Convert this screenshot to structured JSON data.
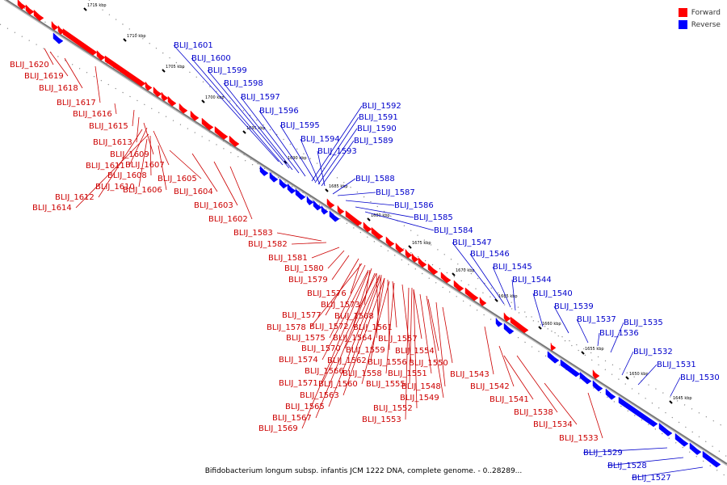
{
  "caption": "Bifidobacterium longum subsp. infantis JCM 1222 DNA, complete genome. - 0..28289...",
  "legend": {
    "forward": {
      "label": "Forward",
      "color": "#ff0000"
    },
    "reverse": {
      "label": "Reverse",
      "color": "#0000ff"
    }
  },
  "colors": {
    "forward_text": "#cc0000",
    "reverse_text": "#0000cc"
  },
  "scale": {
    "ticks": [
      "1715 kbp",
      "1710 kbp",
      "1705 kbp",
      "1700 kbp",
      "1695 kbp",
      "1690 kbp",
      "1685 kbp",
      "1680 kbp",
      "1675 kbp",
      "1670 kbp",
      "1665 kbp",
      "1660 kbp",
      "1655 kbp",
      "1650 kbp",
      "1645 kbp"
    ]
  },
  "forward_genes": [
    "BLIJ_1620",
    "BLIJ_1619",
    "BLIJ_1618",
    "BLIJ_1617",
    "BLIJ_1616",
    "BLIJ_1615",
    "BLIJ_1613",
    "BLIJ_1609",
    "BLIJ_1611",
    "BLIJ_1607",
    "BLIJ_1608",
    "BLIJ_1610",
    "BLIJ_1606",
    "BLIJ_1605",
    "BLIJ_1612",
    "BLIJ_1604",
    "BLIJ_1614",
    "BLIJ_1603",
    "BLIJ_1602",
    "BLIJ_1583",
    "BLIJ_1582",
    "BLIJ_1581",
    "BLIJ_1580",
    "BLIJ_1579",
    "BLIJ_1576",
    "BLIJ_1573",
    "BLIJ_1577",
    "BLIJ_1568",
    "BLIJ_1578",
    "BLIJ_1572",
    "BLIJ_1561",
    "BLIJ_1575",
    "BLIJ_1564",
    "BLIJ_1557",
    "BLIJ_1570",
    "BLIJ_1559",
    "BLIJ_1554",
    "BLIJ_1574",
    "BLIJ_1562",
    "BLIJ_1556",
    "BLIJ_1550",
    "BLIJ_1566",
    "BLIJ_1558",
    "BLIJ_1551",
    "BLIJ_1543",
    "BLIJ_1571",
    "BLIJ_1560",
    "BLIJ_1555",
    "BLIJ_1548",
    "BLIJ_1542",
    "BLIJ_1563",
    "BLIJ_1549",
    "BLIJ_1541",
    "BLIJ_1565",
    "BLIJ_1552",
    "BLIJ_1538",
    "BLIJ_1567",
    "BLIJ_1553",
    "BLIJ_1534",
    "BLIJ_1569",
    "BLIJ_1533"
  ],
  "reverse_genes": [
    "BLIJ_1601",
    "BLIJ_1600",
    "BLIJ_1599",
    "BLIJ_1598",
    "BLIJ_1597",
    "BLIJ_1596",
    "BLIJ_1595",
    "BLIJ_1594",
    "BLIJ_1593",
    "BLIJ_1592",
    "BLIJ_1591",
    "BLIJ_1590",
    "BLIJ_1589",
    "BLIJ_1588",
    "BLIJ_1587",
    "BLIJ_1586",
    "BLIJ_1585",
    "BLIJ_1584",
    "BLIJ_1547",
    "BLIJ_1546",
    "BLIJ_1545",
    "BLIJ_1544",
    "BLIJ_1540",
    "BLIJ_1539",
    "BLIJ_1537",
    "BLIJ_1535",
    "BLIJ_1536",
    "BLIJ_1532",
    "BLIJ_1531",
    "BLIJ_1530",
    "BLIJ_1529",
    "BLIJ_1528",
    "BLIJ_1527"
  ]
}
